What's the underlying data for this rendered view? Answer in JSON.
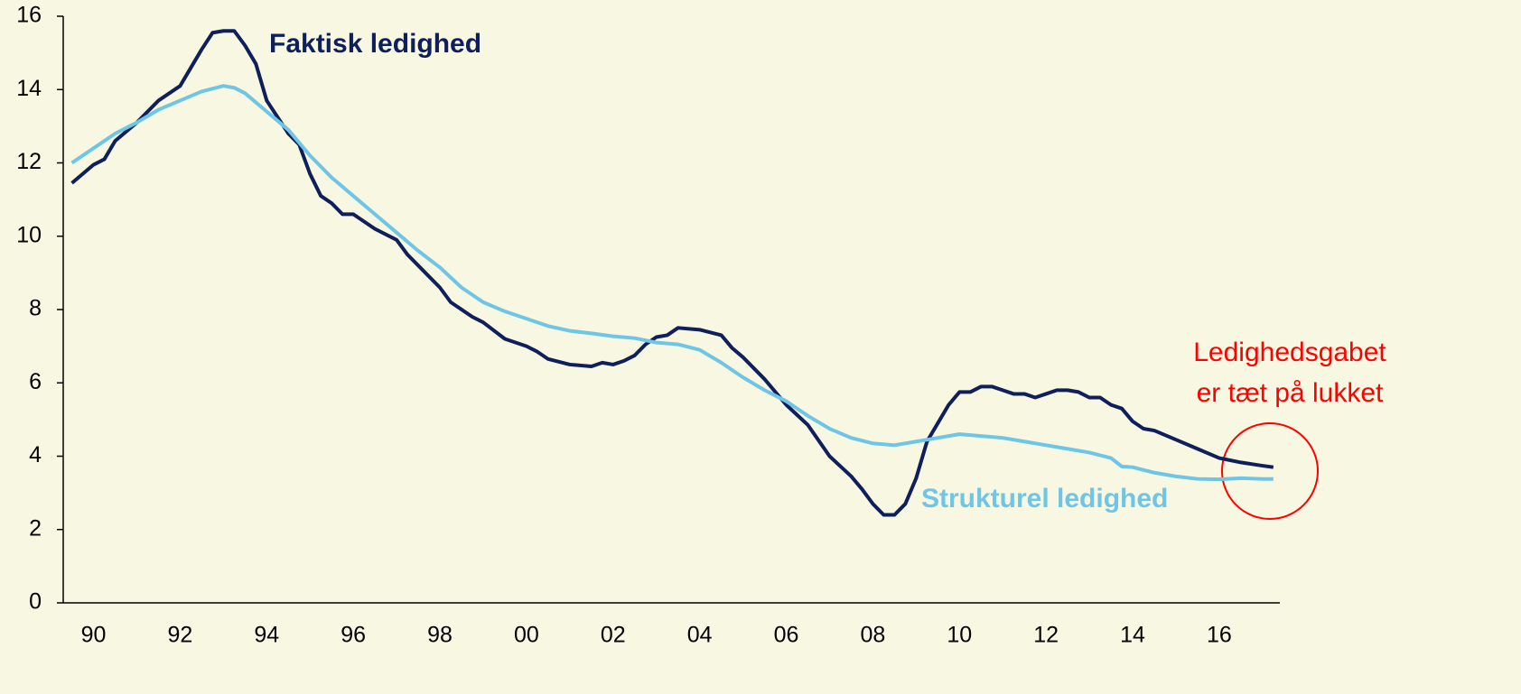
{
  "chart_data": {
    "type": "line",
    "xlim": [
      1989.3,
      2017.4
    ],
    "ylim": [
      0,
      16
    ],
    "yticks": [
      0,
      2,
      4,
      6,
      8,
      10,
      12,
      14,
      16
    ],
    "xticks": [
      {
        "value": 1990,
        "label": "90"
      },
      {
        "value": 1992,
        "label": "92"
      },
      {
        "value": 1994,
        "label": "94"
      },
      {
        "value": 1996,
        "label": "96"
      },
      {
        "value": 1998,
        "label": "98"
      },
      {
        "value": 2000,
        "label": "00"
      },
      {
        "value": 2002,
        "label": "02"
      },
      {
        "value": 2004,
        "label": "04"
      },
      {
        "value": 2006,
        "label": "06"
      },
      {
        "value": 2008,
        "label": "08"
      },
      {
        "value": 2010,
        "label": "10"
      },
      {
        "value": 2012,
        "label": "12"
      },
      {
        "value": 2014,
        "label": "14"
      },
      {
        "value": 2016,
        "label": "16"
      }
    ],
    "grid": false,
    "annotation": [
      "Ledighedsgabet",
      "er tæt på lukket"
    ],
    "series": [
      {
        "name": "Faktisk ledighed",
        "color": "#0e1f5b",
        "x": [
          1989.5,
          1990,
          1990.25,
          1990.5,
          1991,
          1991.5,
          1992,
          1992.5,
          1992.75,
          1993,
          1993.25,
          1993.5,
          1993.75,
          1994,
          1994.5,
          1994.75,
          1995,
          1995.25,
          1995.5,
          1995.75,
          1996,
          1996.5,
          1997,
          1997.25,
          1998,
          1998.25,
          1998.75,
          1999,
          1999.5,
          2000,
          2000.25,
          2000.5,
          2001,
          2001.5,
          2001.75,
          2002,
          2002.25,
          2002.5,
          2002.75,
          2003,
          2003.25,
          2003.5,
          2004,
          2004.5,
          2004.75,
          2005,
          2005.5,
          2006,
          2006.5,
          2007,
          2007.5,
          2007.75,
          2008,
          2008.25,
          2008.5,
          2008.75,
          2009,
          2009.25,
          2009.5,
          2009.75,
          2010,
          2010.25,
          2010.5,
          2010.75,
          2011,
          2011.25,
          2011.5,
          2011.75,
          2012,
          2012.25,
          2012.5,
          2012.75,
          2013,
          2013.25,
          2013.5,
          2013.75,
          2014,
          2014.25,
          2014.5,
          2015,
          2015.5,
          2016,
          2016.5,
          2017,
          2017.25
        ],
        "values": [
          11.45,
          11.95,
          12.1,
          12.6,
          13.1,
          13.7,
          14.1,
          15.1,
          15.55,
          15.6,
          15.6,
          15.2,
          14.7,
          13.7,
          12.8,
          12.5,
          11.7,
          11.1,
          10.9,
          10.6,
          10.6,
          10.2,
          9.9,
          9.5,
          8.6,
          8.2,
          7.8,
          7.65,
          7.2,
          7.0,
          6.85,
          6.65,
          6.5,
          6.45,
          6.55,
          6.5,
          6.6,
          6.75,
          7.05,
          7.25,
          7.3,
          7.5,
          7.45,
          7.3,
          6.95,
          6.7,
          6.1,
          5.4,
          4.85,
          4.0,
          3.45,
          3.1,
          2.7,
          2.4,
          2.4,
          2.7,
          3.4,
          4.4,
          4.9,
          5.4,
          5.75,
          5.75,
          5.9,
          5.9,
          5.8,
          5.7,
          5.7,
          5.6,
          5.7,
          5.8,
          5.8,
          5.75,
          5.6,
          5.6,
          5.4,
          5.3,
          4.95,
          4.75,
          4.7,
          4.45,
          4.2,
          3.95,
          3.83,
          3.74,
          3.7
        ]
      },
      {
        "name": "Strukturel ledighed",
        "color": "#6fc5e6",
        "x": [
          1989.5,
          1990,
          1990.5,
          1991,
          1991.5,
          1992,
          1992.5,
          1993,
          1993.25,
          1993.5,
          1994,
          1994.5,
          1995,
          1995.5,
          1996,
          1996.5,
          1997,
          1997.5,
          1998,
          1998.5,
          1999,
          1999.5,
          2000,
          2000.5,
          2001,
          2001.5,
          2002,
          2002.5,
          2003,
          2003.5,
          2004,
          2004.5,
          2005,
          2005.5,
          2006,
          2006.5,
          2007,
          2007.5,
          2008,
          2008.5,
          2009,
          2009.5,
          2010,
          2010.5,
          2011,
          2011.5,
          2012,
          2012.5,
          2013,
          2013.5,
          2013.75,
          2014,
          2014.5,
          2015,
          2015.5,
          2016,
          2016.5,
          2017,
          2017.25
        ],
        "values": [
          12.0,
          12.4,
          12.8,
          13.1,
          13.45,
          13.7,
          13.95,
          14.1,
          14.05,
          13.9,
          13.4,
          12.9,
          12.2,
          11.6,
          11.1,
          10.6,
          10.1,
          9.6,
          9.15,
          8.6,
          8.2,
          7.95,
          7.75,
          7.55,
          7.42,
          7.35,
          7.27,
          7.22,
          7.1,
          7.05,
          6.9,
          6.55,
          6.15,
          5.8,
          5.5,
          5.1,
          4.75,
          4.5,
          4.35,
          4.3,
          4.4,
          4.5,
          4.6,
          4.55,
          4.5,
          4.4,
          4.3,
          4.2,
          4.1,
          3.95,
          3.72,
          3.7,
          3.55,
          3.45,
          3.38,
          3.37,
          3.4,
          3.38,
          3.38
        ]
      }
    ]
  }
}
